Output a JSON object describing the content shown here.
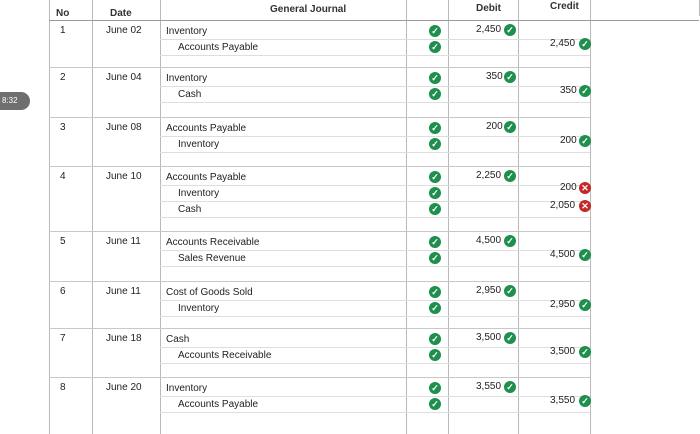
{
  "side_badge": "8:32",
  "header": {
    "no": "No",
    "date": "Date",
    "title": "General Journal",
    "debit": "Debit",
    "credit": "Credit"
  },
  "entries": [
    {
      "no": "1",
      "date": "June 02",
      "lines": [
        "Inventory",
        "Accounts Payable"
      ],
      "debit": "2,450",
      "credits": [
        "2,450"
      ],
      "credit_status": [
        "correct"
      ]
    },
    {
      "no": "2",
      "date": "June 04",
      "lines": [
        "Inventory",
        "Cash"
      ],
      "debit": "350",
      "credits": [
        "350"
      ],
      "credit_status": [
        "correct"
      ]
    },
    {
      "no": "3",
      "date": "June 08",
      "lines": [
        "Accounts Payable",
        "Inventory"
      ],
      "debit": "200",
      "credits": [
        "200"
      ],
      "credit_status": [
        "correct"
      ]
    },
    {
      "no": "4",
      "date": "June 10",
      "lines": [
        "Accounts Payable",
        "Inventory",
        "Cash"
      ],
      "debit": "2,250",
      "credits": [
        "200",
        "2,050"
      ],
      "credit_status": [
        "incorrect",
        "incorrect"
      ]
    },
    {
      "no": "5",
      "date": "June 11",
      "lines": [
        "Accounts Receivable",
        "Sales Revenue"
      ],
      "debit": "4,500",
      "credits": [
        "4,500"
      ],
      "credit_status": [
        "correct"
      ]
    },
    {
      "no": "6",
      "date": "June 11",
      "lines": [
        "Cost of Goods Sold",
        "Inventory"
      ],
      "debit": "2,950",
      "credits": [
        "2,950"
      ],
      "credit_status": [
        "correct"
      ]
    },
    {
      "no": "7",
      "date": "June 18",
      "lines": [
        "Cash",
        "Accounts Receivable"
      ],
      "debit": "3,500",
      "credits": [
        "3,500"
      ],
      "credit_status": [
        "correct"
      ]
    },
    {
      "no": "8",
      "date": "June 20",
      "lines": [
        "Inventory",
        "Accounts Payable"
      ],
      "debit": "3,550",
      "credits": [
        "3,550"
      ],
      "credit_status": [
        "correct"
      ]
    }
  ],
  "colors": {
    "correct": "#1f8f4e",
    "incorrect": "#c62828"
  }
}
